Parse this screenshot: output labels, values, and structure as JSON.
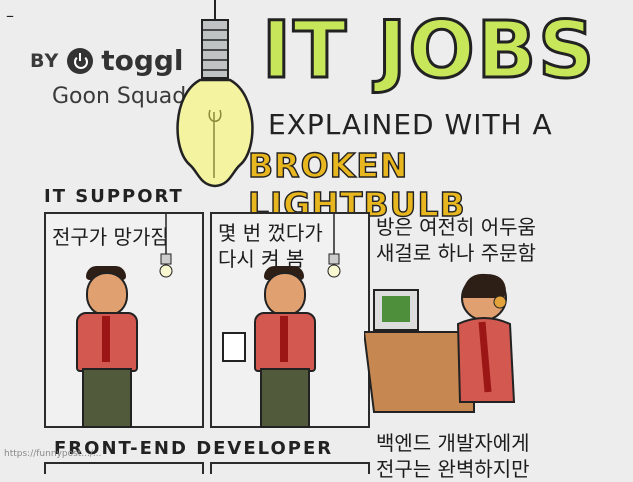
{
  "corner_mark": "–",
  "header": {
    "by": "BY",
    "brand": "toggl",
    "team": "Goon Squad"
  },
  "title": {
    "main": "IT JOBS",
    "line2": "EXPLAINED WITH A",
    "line3": "BROKEN LIGHTBULB"
  },
  "sections": {
    "it_support": "IT SUPPORT",
    "front_end": "FRONT-END DEVELOPER"
  },
  "panels": {
    "p1": "전구가 망가짐",
    "p2_line1": "몇 번 껐다가",
    "p2_line2": "다시 켜 봄",
    "p3_line1": "방은 여전히 어두움",
    "p3_line2": "새걸로 하나 주문함",
    "p4_line1": "백엔드 개발자에게",
    "p4_line2": "전구는 완벽하지만"
  },
  "source_url": "https://funnypost.../..."
}
